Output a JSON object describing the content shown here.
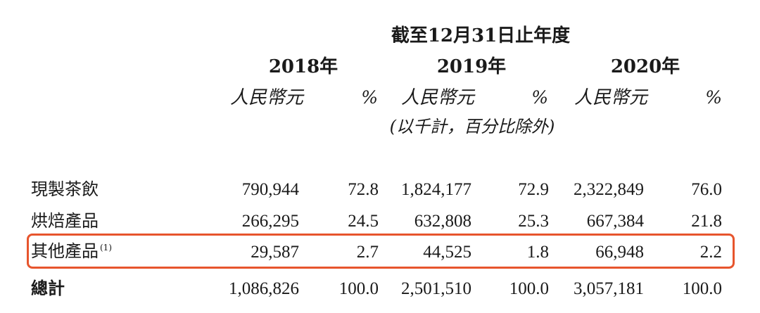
{
  "header": {
    "period_title": "截至12月31日止年度",
    "years": [
      "2018年",
      "2019年",
      "2020年"
    ],
    "unit_labels": [
      "人民幣元",
      "人民幣元",
      "人民幣元"
    ],
    "percent_labels": [
      "%",
      "%",
      "%"
    ],
    "note": "(以千計，百分比除外)"
  },
  "rows": [
    {
      "label": "現製茶飲",
      "footnote": "",
      "values": [
        "790,944",
        "72.8",
        "1,824,177",
        "72.9",
        "2,322,849",
        "76.0"
      ]
    },
    {
      "label": "烘焙產品",
      "footnote": "",
      "values": [
        "266,295",
        "24.5",
        "632,808",
        "25.3",
        "667,384",
        "21.8"
      ]
    },
    {
      "label": "其他產品",
      "footnote": "(1)",
      "values": [
        "29,587",
        "2.7",
        "44,525",
        "1.8",
        "66,948",
        "2.2"
      ]
    },
    {
      "label": "總計",
      "footnote": "",
      "values": [
        "1,086,826",
        "100.0",
        "2,501,510",
        "100.0",
        "3,057,181",
        "100.0"
      ]
    }
  ],
  "highlight": {
    "row_label": "其他產品",
    "color": "#e7552d"
  }
}
